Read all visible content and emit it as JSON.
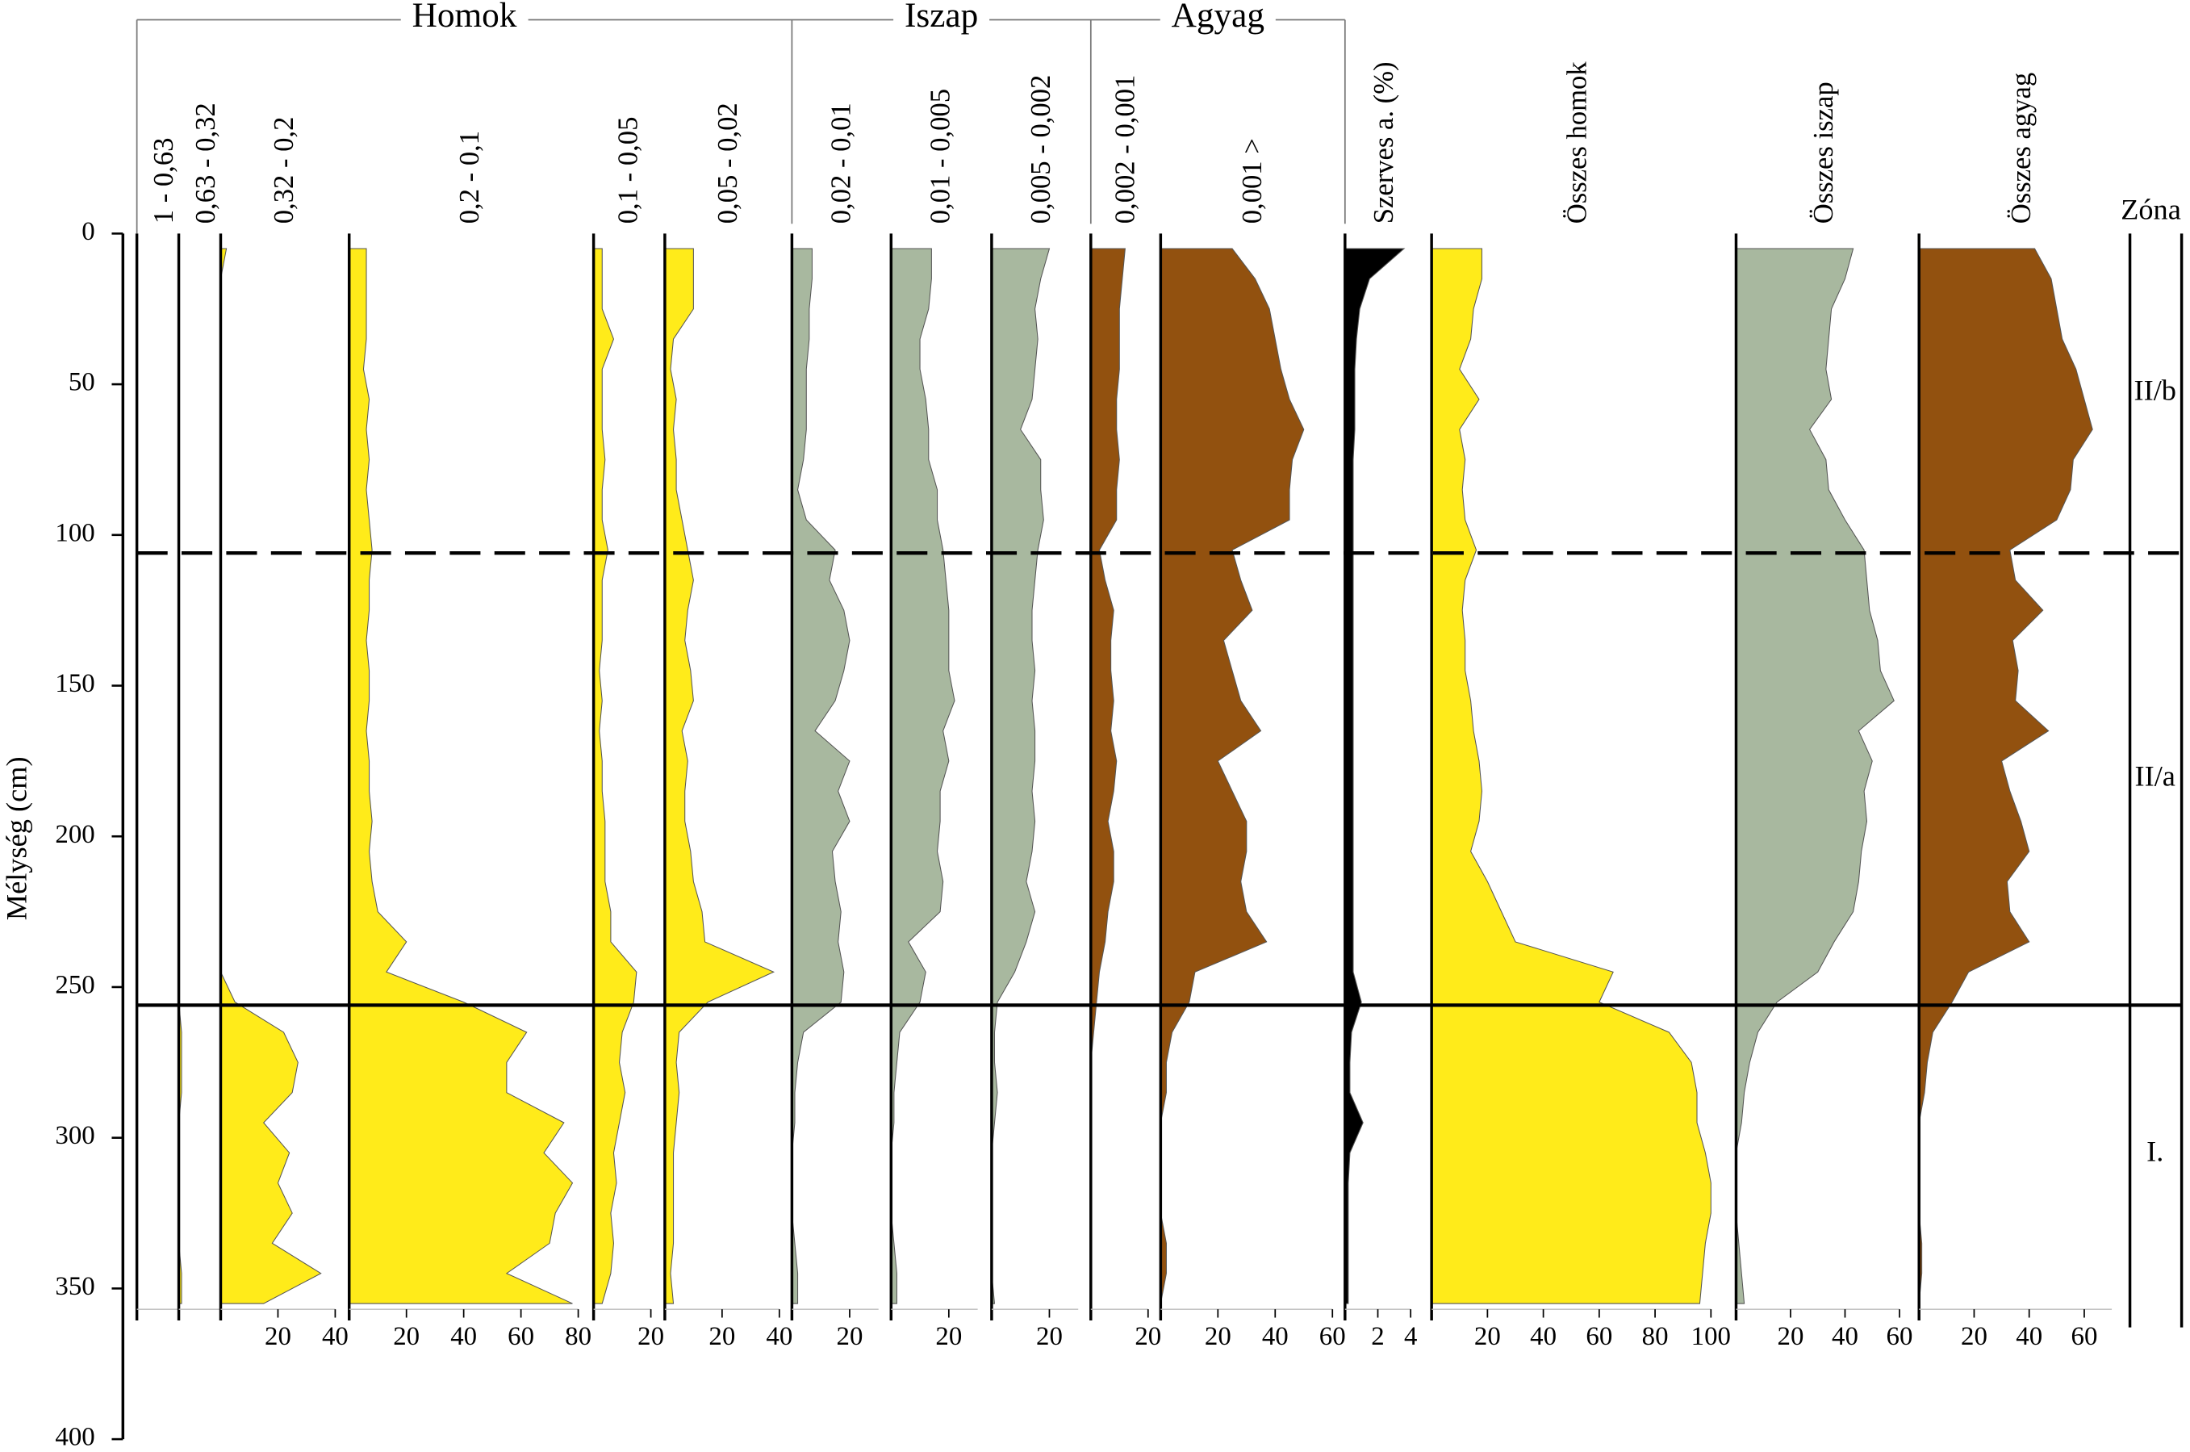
{
  "chart_data": {
    "type": "area",
    "ylabel": "Mélység (cm)",
    "ylim": [
      0,
      400
    ],
    "yticks": [
      0,
      50,
      100,
      150,
      200,
      250,
      300,
      350,
      400
    ],
    "y": [
      5,
      15,
      25,
      35,
      45,
      55,
      65,
      75,
      85,
      95,
      105,
      115,
      125,
      135,
      145,
      155,
      165,
      175,
      185,
      195,
      205,
      215,
      225,
      235,
      245,
      255,
      265,
      275,
      285,
      295,
      305,
      315,
      325,
      335,
      345,
      355
    ],
    "groups": [
      "Homok",
      "Iszap",
      "Agyag"
    ],
    "zone_title": "Zóna",
    "zones": [
      "II/b",
      "II/a",
      "I."
    ],
    "boundaries": [
      {
        "value": 106,
        "style": "dashed"
      },
      {
        "value": 256,
        "style": "solid"
      }
    ],
    "series": [
      {
        "name": "1 - 0,63",
        "color": "#ffeb1a",
        "xlim": [
          0,
          15
        ],
        "xticks": [],
        "values": [
          0,
          0,
          0,
          0,
          0,
          0,
          0,
          0,
          0,
          0,
          0,
          0,
          0,
          0,
          0,
          0,
          0,
          0,
          0,
          0,
          0,
          0,
          0,
          0,
          0,
          0,
          0,
          0,
          0,
          0,
          0,
          0,
          0,
          0,
          0,
          0
        ]
      },
      {
        "name": "0,63 - 0,32",
        "color": "#ffeb1a",
        "xlim": [
          0,
          15
        ],
        "xticks": [],
        "values": [
          0,
          0,
          0,
          0,
          0,
          0,
          0,
          0,
          0,
          0,
          0,
          0,
          0,
          0,
          0,
          0,
          0,
          0,
          0,
          0,
          0,
          0,
          0,
          0,
          0,
          0,
          1,
          1,
          1,
          0,
          0,
          0,
          0,
          0,
          1,
          1
        ]
      },
      {
        "name": "0,32 - 0,2",
        "color": "#ffeb1a",
        "xlim": [
          0,
          40
        ],
        "xticks": [
          20,
          40
        ],
        "values": [
          2,
          0,
          0,
          0,
          0,
          0,
          0,
          0,
          0,
          0,
          0,
          0,
          0,
          0,
          0,
          0,
          0,
          0,
          0,
          0,
          0,
          0,
          0,
          0,
          0,
          5,
          22,
          27,
          25,
          15,
          24,
          20,
          25,
          18,
          35,
          15
        ]
      },
      {
        "name": "0,2 - 0,1",
        "color": "#ffeb1a",
        "xlim": [
          0,
          80
        ],
        "xticks": [
          20,
          40,
          60,
          80
        ],
        "values": [
          6,
          6,
          6,
          6,
          5,
          7,
          6,
          7,
          6,
          7,
          8,
          7,
          7,
          6,
          7,
          7,
          6,
          7,
          7,
          8,
          7,
          8,
          10,
          20,
          13,
          40,
          62,
          55,
          55,
          75,
          68,
          78,
          72,
          70,
          55,
          78
        ]
      },
      {
        "name": "0,1 - 0,05",
        "color": "#ffeb1a",
        "xlim": [
          0,
          20
        ],
        "xticks": [
          20
        ],
        "values": [
          3,
          3,
          3,
          7,
          3,
          3,
          3,
          4,
          3,
          3,
          5,
          3,
          3,
          3,
          2,
          3,
          2,
          3,
          3,
          4,
          4,
          4,
          6,
          6,
          15,
          14,
          10,
          9,
          11,
          9,
          7,
          8,
          6,
          7,
          6,
          3
        ]
      },
      {
        "name": "0,05 - 0,02",
        "color": "#ffeb1a",
        "xlim": [
          0,
          40
        ],
        "xticks": [
          20,
          40
        ],
        "values": [
          10,
          10,
          10,
          3,
          2,
          4,
          3,
          4,
          4,
          6,
          8,
          10,
          8,
          7,
          9,
          10,
          6,
          8,
          7,
          7,
          9,
          10,
          13,
          14,
          38,
          15,
          5,
          4,
          5,
          4,
          3,
          3,
          3,
          3,
          2,
          3
        ]
      },
      {
        "name": "0,02 - 0,01",
        "color": "#a8b89f",
        "xlim": [
          0,
          30
        ],
        "xticks": [
          20
        ],
        "values": [
          7,
          7,
          6,
          6,
          5,
          5,
          5,
          4,
          2,
          5,
          15,
          13,
          18,
          20,
          18,
          15,
          8,
          20,
          16,
          20,
          14,
          15,
          17,
          16,
          18,
          17,
          4,
          2,
          1,
          1,
          0,
          0,
          0,
          1,
          2,
          2
        ]
      },
      {
        "name": "0,01 - 0,005",
        "color": "#a8b89f",
        "xlim": [
          0,
          30
        ],
        "xticks": [
          20
        ],
        "values": [
          14,
          14,
          13,
          10,
          10,
          12,
          13,
          13,
          16,
          16,
          18,
          19,
          20,
          20,
          20,
          22,
          18,
          20,
          17,
          17,
          16,
          18,
          17,
          6,
          12,
          10,
          3,
          2,
          1,
          1,
          0,
          0,
          0,
          1,
          2,
          2
        ]
      },
      {
        "name": "0,005 - 0,002",
        "color": "#a8b89f",
        "xlim": [
          0,
          30
        ],
        "xticks": [
          20
        ],
        "values": [
          20,
          17,
          15,
          16,
          15,
          14,
          10,
          17,
          17,
          18,
          16,
          15,
          14,
          14,
          15,
          14,
          15,
          15,
          14,
          15,
          14,
          12,
          15,
          12,
          8,
          2,
          1,
          1,
          2,
          1,
          0,
          0,
          0,
          0,
          0,
          1
        ]
      },
      {
        "name": "0,002 - 0,001",
        "color": "#92510f",
        "xlim": [
          0,
          20
        ],
        "xticks": [
          20
        ],
        "values": [
          12,
          11,
          10,
          10,
          10,
          9,
          9,
          10,
          9,
          9,
          3,
          5,
          8,
          7,
          7,
          8,
          7,
          9,
          8,
          6,
          8,
          8,
          6,
          5,
          3,
          2,
          1,
          0,
          0,
          0,
          0,
          0,
          0,
          0,
          0,
          0
        ]
      },
      {
        "name": "0,001 >",
        "color": "#92510f",
        "xlim": [
          0,
          60
        ],
        "xticks": [
          20,
          40,
          60
        ],
        "values": [
          25,
          33,
          38,
          40,
          42,
          45,
          50,
          46,
          45,
          45,
          25,
          28,
          32,
          22,
          25,
          28,
          35,
          20,
          25,
          30,
          30,
          28,
          30,
          37,
          12,
          10,
          4,
          2,
          2,
          0,
          0,
          0,
          0,
          2,
          2,
          0
        ]
      },
      {
        "name": "Szerves a. (%)",
        "color": "#000000",
        "xlim": [
          0,
          4
        ],
        "xticks": [
          2,
          4
        ],
        "values": [
          3.6,
          1.5,
          0.9,
          0.7,
          0.6,
          0.6,
          0.6,
          0.5,
          0.5,
          0.5,
          0.5,
          0.5,
          0.5,
          0.5,
          0.5,
          0.5,
          0.5,
          0.5,
          0.5,
          0.5,
          0.5,
          0.5,
          0.5,
          0.5,
          0.5,
          1.0,
          0.4,
          0.3,
          0.3,
          1.1,
          0.3,
          0.2,
          0.2,
          0.2,
          0.2,
          0.2
        ]
      },
      {
        "name": "Összes homok",
        "color": "#ffeb1a",
        "xlim": [
          0,
          100
        ],
        "xticks": [
          20,
          40,
          60,
          80,
          100
        ],
        "values": [
          18,
          18,
          15,
          14,
          10,
          17,
          10,
          12,
          11,
          12,
          16,
          12,
          11,
          12,
          12,
          14,
          15,
          17,
          18,
          17,
          14,
          20,
          25,
          30,
          65,
          60,
          85,
          93,
          95,
          95,
          98,
          100,
          100,
          98,
          97,
          96
        ]
      },
      {
        "name": "Összes iszap",
        "color": "#a8b89f",
        "xlim": [
          0,
          60
        ],
        "xticks": [
          20,
          40,
          60
        ],
        "values": [
          43,
          40,
          35,
          34,
          33,
          35,
          27,
          33,
          34,
          40,
          47,
          48,
          49,
          52,
          53,
          58,
          45,
          50,
          47,
          48,
          46,
          45,
          43,
          36,
          30,
          15,
          8,
          5,
          3,
          2,
          0,
          0,
          0,
          1,
          2,
          3
        ]
      },
      {
        "name": "Összes agyag",
        "color": "#92510f",
        "xlim": [
          0,
          70
        ],
        "xticks": [
          20,
          40,
          60
        ],
        "values": [
          42,
          48,
          50,
          52,
          57,
          60,
          63,
          56,
          55,
          50,
          33,
          35,
          45,
          34,
          36,
          35,
          47,
          30,
          33,
          37,
          40,
          32,
          33,
          40,
          18,
          12,
          5,
          3,
          2,
          0,
          0,
          0,
          0,
          1,
          1,
          0
        ]
      }
    ]
  }
}
